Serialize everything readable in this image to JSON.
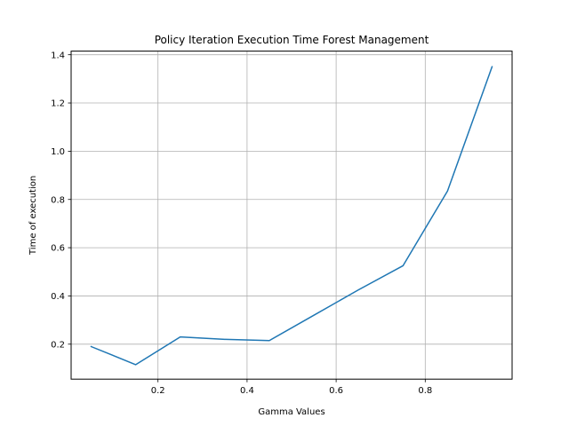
{
  "chart_data": {
    "type": "line",
    "title": "Policy Iteration Execution Time Forest Management",
    "xlabel": "Gamma Values",
    "ylabel": "Time of execution",
    "xlim": [
      0.005,
      0.995
    ],
    "ylim": [
      0.055,
      1.415
    ],
    "xticks": [
      0.2,
      0.4,
      0.6,
      0.8
    ],
    "xtick_labels": [
      "0.2",
      "0.4",
      "0.6",
      "0.8"
    ],
    "yticks": [
      0.2,
      0.4,
      0.6,
      0.8,
      1.0,
      1.2,
      1.4
    ],
    "ytick_labels": [
      "0.2",
      "0.4",
      "0.6",
      "0.8",
      "1.0",
      "1.2",
      "1.4"
    ],
    "grid": true,
    "series": [
      {
        "color": "#1f77b4",
        "x": [
          0.05,
          0.15,
          0.25,
          0.35,
          0.45,
          0.55,
          0.65,
          0.75,
          0.85,
          0.95
        ],
        "y": [
          0.19,
          0.115,
          0.23,
          0.22,
          0.215,
          0.32,
          0.425,
          0.525,
          0.835,
          1.35
        ]
      }
    ]
  }
}
